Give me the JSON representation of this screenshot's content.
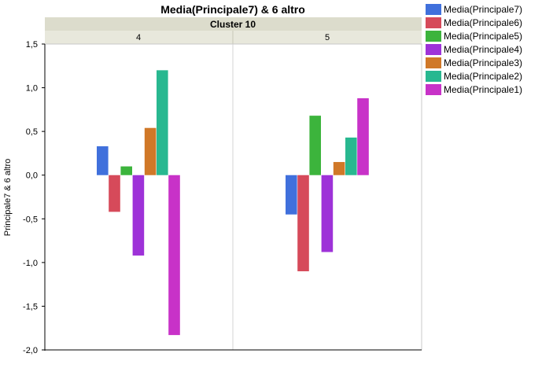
{
  "chart_data": {
    "type": "bar",
    "title": "Media(Principale7) & 6 altro",
    "cluster_title": "Cluster 10",
    "ylabel": "Principale7 & 6 altro",
    "xlabel": "",
    "ylim": [
      -2.0,
      1.5
    ],
    "yticks": [
      1.5,
      1.0,
      0.5,
      0.0,
      -0.5,
      -1.0,
      -1.5,
      -2.0
    ],
    "ytick_labels": [
      "1,5",
      "1,0",
      "0,5",
      "0,0",
      "-0,5",
      "-1,0",
      "-1,5",
      "-2,0"
    ],
    "legend_position": "top-right",
    "panels": [
      {
        "label": "4"
      },
      {
        "label": "5"
      }
    ],
    "series": [
      {
        "name": "Media(Principale7)",
        "color": "#4070dc",
        "values": [
          0.33,
          -0.45
        ]
      },
      {
        "name": "Media(Principale6)",
        "color": "#d64a5a",
        "values": [
          -0.42,
          -1.1
        ]
      },
      {
        "name": "Media(Principale5)",
        "color": "#3cb43c",
        "values": [
          0.1,
          0.68
        ]
      },
      {
        "name": "Media(Principale4)",
        "color": "#9e32d8",
        "values": [
          -0.92,
          -0.88
        ]
      },
      {
        "name": "Media(Principale3)",
        "color": "#d07828",
        "values": [
          0.54,
          0.15
        ]
      },
      {
        "name": "Media(Principale2)",
        "color": "#28b890",
        "values": [
          1.2,
          0.43
        ]
      },
      {
        "name": "Media(Principale1)",
        "color": "#c832c8",
        "values": [
          -1.83,
          0.88
        ]
      }
    ]
  }
}
